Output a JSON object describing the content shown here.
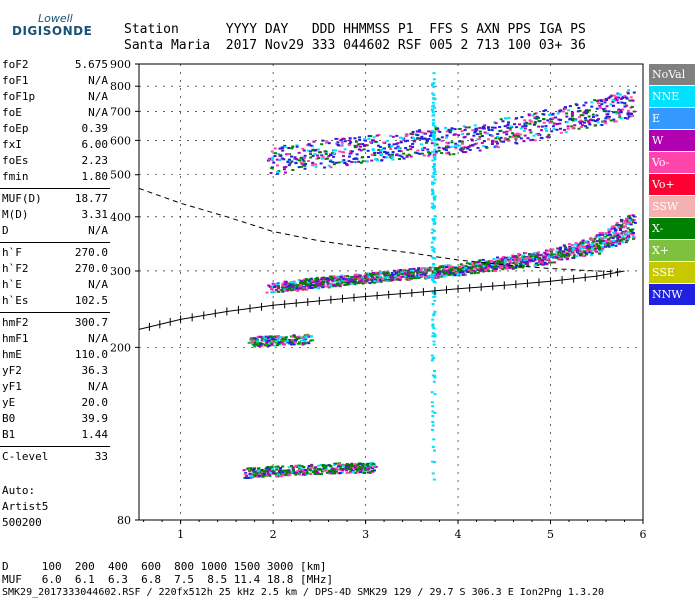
{
  "logo": {
    "line1": "Lowell",
    "line2": "DIGISONDE"
  },
  "header": {
    "line1": "Station      YYYY DAY   DDD HHMMSS P1  FFS S AXN PPS IGA PS",
    "line2": "Santa Maria  2017 Nov29 333 044602 RSF 005 2 713 100 03+ 36"
  },
  "params_group1": [
    {
      "name": "foF2",
      "value": "5.675"
    },
    {
      "name": "foF1",
      "value": "N/A"
    },
    {
      "name": "foF1p",
      "value": "N/A"
    },
    {
      "name": "foE",
      "value": "N/A"
    },
    {
      "name": "foEp",
      "value": "0.39"
    },
    {
      "name": "fxI",
      "value": "6.00"
    },
    {
      "name": "foEs",
      "value": "2.23"
    },
    {
      "name": "fmin",
      "value": "1.80"
    }
  ],
  "params_group2": [
    {
      "name": "MUF(D)",
      "value": "18.77"
    },
    {
      "name": "M(D)",
      "value": "3.31"
    },
    {
      "name": "D",
      "value": "N/A"
    }
  ],
  "params_group3": [
    {
      "name": "h`F",
      "value": "270.0"
    },
    {
      "name": "h`F2",
      "value": "270.0"
    },
    {
      "name": "h`E",
      "value": "N/A"
    },
    {
      "name": "h`Es",
      "value": "102.5"
    }
  ],
  "params_group4": [
    {
      "name": "hmF2",
      "value": "300.7"
    },
    {
      "name": "hmF1",
      "value": "N/A"
    },
    {
      "name": "hmE",
      "value": "110.0"
    },
    {
      "name": "yF2",
      "value": "36.3"
    },
    {
      "name": "yF1",
      "value": "N/A"
    },
    {
      "name": "yE",
      "value": "20.0"
    },
    {
      "name": "B0",
      "value": "39.9"
    },
    {
      "name": "B1",
      "value": "1.44"
    }
  ],
  "params_group5": [
    {
      "name": "C-level",
      "value": "33"
    }
  ],
  "auto": {
    "line1": "Auto:",
    "line2": "Artist5",
    "line3": "500200"
  },
  "legend": [
    {
      "label": "NoVal",
      "color": "#808080"
    },
    {
      "label": "NNE",
      "color": "#00e0ff"
    },
    {
      "label": "E",
      "color": "#3399ff"
    },
    {
      "label": "W",
      "color": "#b000b0"
    },
    {
      "label": "Vo-",
      "color": "#ff44aa"
    },
    {
      "label": "Vo+",
      "color": "#ff0033"
    },
    {
      "label": "SSW",
      "color": "#f5b0b0"
    },
    {
      "label": "X-",
      "color": "#008000"
    },
    {
      "label": "X+",
      "color": "#80c040"
    },
    {
      "label": "SSE",
      "color": "#c8c800"
    },
    {
      "label": "NNW",
      "color": "#2020e0"
    }
  ],
  "bottom": {
    "d_line": "D     100  200  400  600  800 1000 1500 3000 [km]",
    "muf_line": "MUF   6.0  6.1  6.3  6.8  7.5  8.5 11.4 18.8 [MHz]",
    "footer": "SMK29_2017333044602.RSF / 220fx512h 25 kHz 2.5 km / DPS-4D SMK29 129 / 29.7 S 306.3 E Ion2Png 1.3.20"
  },
  "chart_data": {
    "type": "scatter",
    "title": "",
    "xlabel": "",
    "ylabel": "",
    "xlim": [
      0.55,
      6.0
    ],
    "ylim": [
      80,
      900
    ],
    "xticks": [
      "1",
      "2",
      "3",
      "4",
      "5",
      "6"
    ],
    "yticks": [
      "80",
      "200",
      "300",
      "400",
      "500",
      "600",
      "700",
      "800",
      "900"
    ],
    "y_scale": "log",
    "grid": true,
    "legend_position": "right",
    "series": [
      {
        "style": "dashed",
        "x": [
          0.55,
          1.0,
          1.5,
          2.0,
          2.5,
          3.0,
          3.5,
          4.0,
          4.5,
          5.0,
          5.5,
          5.8
        ],
        "y": [
          465,
          430,
          400,
          370,
          352,
          340,
          330,
          318,
          310,
          304,
          300,
          298
        ]
      },
      {
        "style": "ticked-line",
        "x": [
          0.55,
          1.0,
          1.5,
          2.0,
          2.5,
          3.0,
          3.5,
          4.0,
          4.5,
          5.0,
          5.5,
          5.8
        ],
        "y": [
          220,
          232,
          242,
          250,
          256,
          262,
          267,
          273,
          278,
          284,
          292,
          300
        ]
      }
    ],
    "traces": [
      {
        "name": "F2 O-trace",
        "color": "#ff44aa",
        "x": [
          1.95,
          2.5,
          3.0,
          3.5,
          4.0,
          4.5,
          5.0,
          5.5,
          5.9
        ],
        "y": [
          275,
          282,
          290,
          297,
          305,
          318,
          330,
          355,
          400
        ]
      },
      {
        "name": "F2 X-trace",
        "color": "#008000",
        "x": [
          2.1,
          2.5,
          3.0,
          3.5,
          4.0,
          4.5,
          5.0,
          5.5,
          5.9
        ],
        "y": [
          278,
          284,
          290,
          295,
          302,
          312,
          322,
          340,
          370
        ]
      },
      {
        "name": "2-hop",
        "color": "#2020e0",
        "x": [
          1.95,
          2.5,
          3.0,
          3.5,
          4.0,
          4.5,
          5.0,
          5.5,
          5.9
        ],
        "y": [
          540,
          560,
          575,
          590,
          605,
          630,
          660,
          700,
          740
        ]
      },
      {
        "name": "Es",
        "color": "#008000",
        "x": [
          1.7,
          2.0,
          2.4,
          2.8,
          3.1
        ],
        "y": [
          103,
          104,
          105,
          106,
          106
        ]
      },
      {
        "name": "Es 2-hop",
        "color": "#00c000",
        "x": [
          1.75,
          2.0,
          2.4
        ],
        "y": [
          207,
          208,
          210
        ]
      },
      {
        "name": "spread",
        "color": "#00e0ff",
        "x": [
          3.72,
          3.72,
          3.72,
          3.72,
          3.72,
          3.72,
          3.72
        ],
        "y": [
          100,
          200,
          300,
          400,
          500,
          650,
          850
        ]
      }
    ]
  }
}
